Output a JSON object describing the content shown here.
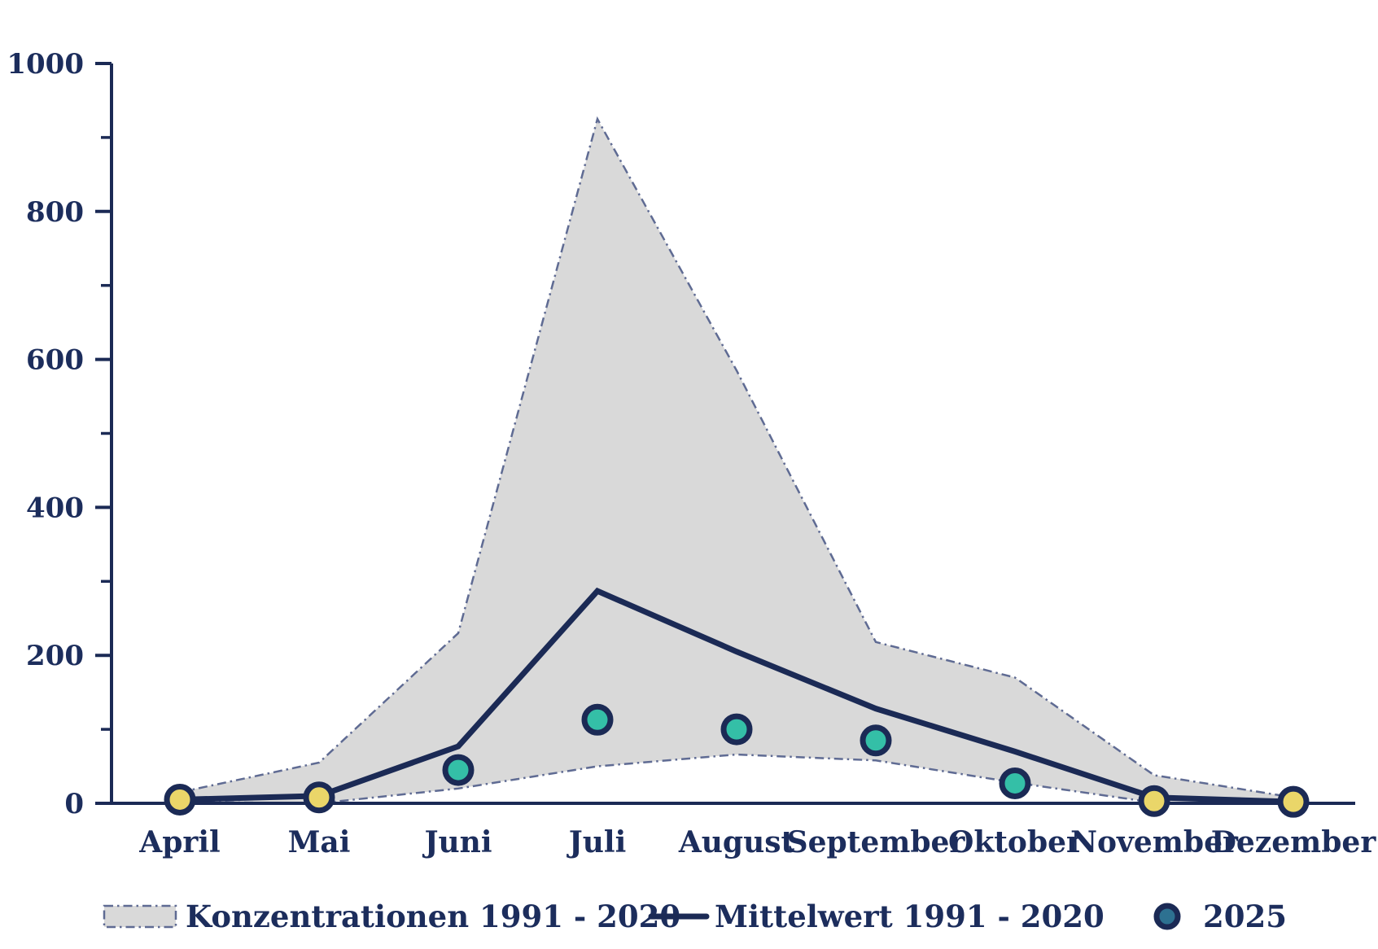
{
  "colors": {
    "navy": "#1b2a55",
    "text_navy": "#1c2d5c",
    "band_fill": "#d9d9d9",
    "band_border": "#5f6b93",
    "point_teal": "#34bfa7",
    "point_yellow": "#ead669",
    "legend_dot_fill": "#2d7191",
    "background": "#ffffff"
  },
  "chart_data": {
    "type": "line",
    "title": "",
    "xlabel": "",
    "ylabel": "",
    "categories": [
      "April",
      "Mai",
      "Juni",
      "Juli",
      "August",
      "September",
      "Oktober",
      "November",
      "Dezember"
    ],
    "ylim": [
      0,
      1000
    ],
    "yticks_major": [
      0,
      200,
      400,
      600,
      800,
      1000
    ],
    "yticks_minor": [
      100,
      300,
      500,
      700,
      900
    ],
    "grid": "off",
    "legend_position": "bottom",
    "series": [
      {
        "name": "Konzentrationen 1991 - 2020",
        "type": "band",
        "upper": [
          15,
          55,
          230,
          925,
          585,
          218,
          170,
          38,
          8
        ],
        "lower": [
          2,
          0,
          20,
          50,
          66,
          58,
          28,
          1,
          0
        ]
      },
      {
        "name": "Mittelwert 1991 - 2020",
        "type": "line",
        "values": [
          5,
          10,
          77,
          287,
          205,
          128,
          70,
          8,
          2
        ]
      },
      {
        "name": "2025",
        "type": "scatter",
        "values": [
          5,
          8,
          45,
          113,
          100,
          85,
          27,
          3,
          2
        ],
        "point_colors": [
          "yellow",
          "yellow",
          "teal",
          "teal",
          "teal",
          "teal",
          "teal",
          "yellow",
          "yellow"
        ]
      }
    ]
  },
  "legend": {
    "items": [
      {
        "label": "Konzentrationen 1991 - 2020",
        "swatch": "band"
      },
      {
        "label": "Mittelwert 1991 - 2020",
        "swatch": "line"
      },
      {
        "label": "2025",
        "swatch": "dot"
      }
    ]
  }
}
